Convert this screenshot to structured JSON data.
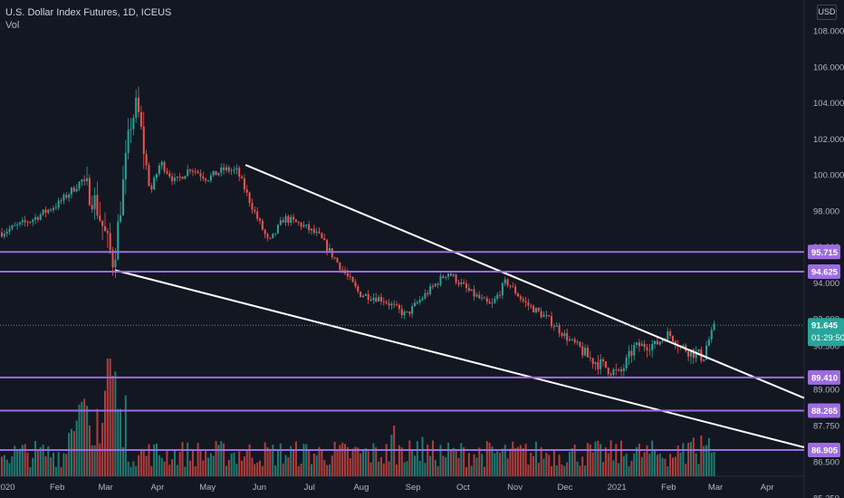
{
  "header": {
    "symbol": "U.S. Dollar Index Futures, 1D, ICEUS",
    "volume_label": "Vol"
  },
  "currency_button": "USD",
  "colors": {
    "background": "#131722",
    "up": "#26a69a",
    "down": "#ef5350",
    "up_volume": "#1e7b72",
    "down_volume": "#b23d3b",
    "level_line": "#9c6ce0",
    "trend_line": "#ffffff",
    "last_price": "#26a69a"
  },
  "chart_data": {
    "type": "candlestick",
    "price_axis": {
      "ticks": [
        "108.000",
        "106.000",
        "104.000",
        "102.000",
        "100.000",
        "98.000",
        "94.000",
        "90.500",
        "87.750",
        "86.500",
        "85.250"
      ],
      "partially_hidden_ticks": [
        "96.000",
        "92.000",
        "89.000"
      ]
    },
    "time_axis": [
      "2020",
      "Feb",
      "Mar",
      "Apr",
      "May",
      "Jun",
      "Jul",
      "Aug",
      "Sep",
      "Oct",
      "Nov",
      "Dec",
      "2021",
      "Feb",
      "Mar",
      "Apr"
    ],
    "horizontal_levels": [
      "95.715",
      "94.625",
      "89.410",
      "88.265",
      "86.905"
    ],
    "last_price": {
      "value": "91.645",
      "countdown": "01:29:50"
    },
    "approx_closes": [
      {
        "date": "2020-01-02",
        "close": 96.8
      },
      {
        "date": "2020-01-20",
        "close": 97.5
      },
      {
        "date": "2020-02-05",
        "close": 98.4
      },
      {
        "date": "2020-02-19",
        "close": 99.7
      },
      {
        "date": "2020-02-27",
        "close": 98.5
      },
      {
        "date": "2020-03-09",
        "close": 95.1
      },
      {
        "date": "2020-03-19",
        "close": 102.8
      },
      {
        "date": "2020-03-23",
        "close": 103.9
      },
      {
        "date": "2020-03-31",
        "close": 99.0
      },
      {
        "date": "2020-04-06",
        "close": 100.7
      },
      {
        "date": "2020-04-15",
        "close": 99.6
      },
      {
        "date": "2020-04-24",
        "close": 100.4
      },
      {
        "date": "2020-05-04",
        "close": 99.8
      },
      {
        "date": "2020-05-14",
        "close": 100.3
      },
      {
        "date": "2020-05-22",
        "close": 100.2
      },
      {
        "date": "2020-06-01",
        "close": 98.0
      },
      {
        "date": "2020-06-10",
        "close": 96.2
      },
      {
        "date": "2020-06-19",
        "close": 97.6
      },
      {
        "date": "2020-06-30",
        "close": 97.2
      },
      {
        "date": "2020-07-10",
        "close": 96.6
      },
      {
        "date": "2020-07-22",
        "close": 95.0
      },
      {
        "date": "2020-08-03",
        "close": 93.4
      },
      {
        "date": "2020-08-17",
        "close": 93.1
      },
      {
        "date": "2020-08-31",
        "close": 92.2
      },
      {
        "date": "2020-09-10",
        "close": 93.2
      },
      {
        "date": "2020-09-25",
        "close": 94.6
      },
      {
        "date": "2020-10-08",
        "close": 93.5
      },
      {
        "date": "2020-10-21",
        "close": 92.7
      },
      {
        "date": "2020-10-30",
        "close": 94.1
      },
      {
        "date": "2020-11-10",
        "close": 92.9
      },
      {
        "date": "2020-11-24",
        "close": 92.0
      },
      {
        "date": "2020-12-07",
        "close": 90.8
      },
      {
        "date": "2020-12-18",
        "close": 90.1
      },
      {
        "date": "2021-01-06",
        "close": 89.5
      },
      {
        "date": "2021-01-15",
        "close": 90.5
      },
      {
        "date": "2021-01-28",
        "close": 90.6
      },
      {
        "date": "2021-02-04",
        "close": 91.2
      },
      {
        "date": "2021-02-11",
        "close": 90.5
      },
      {
        "date": "2021-02-25",
        "close": 90.1
      },
      {
        "date": "2021-03-04",
        "close": 91.645
      }
    ]
  }
}
